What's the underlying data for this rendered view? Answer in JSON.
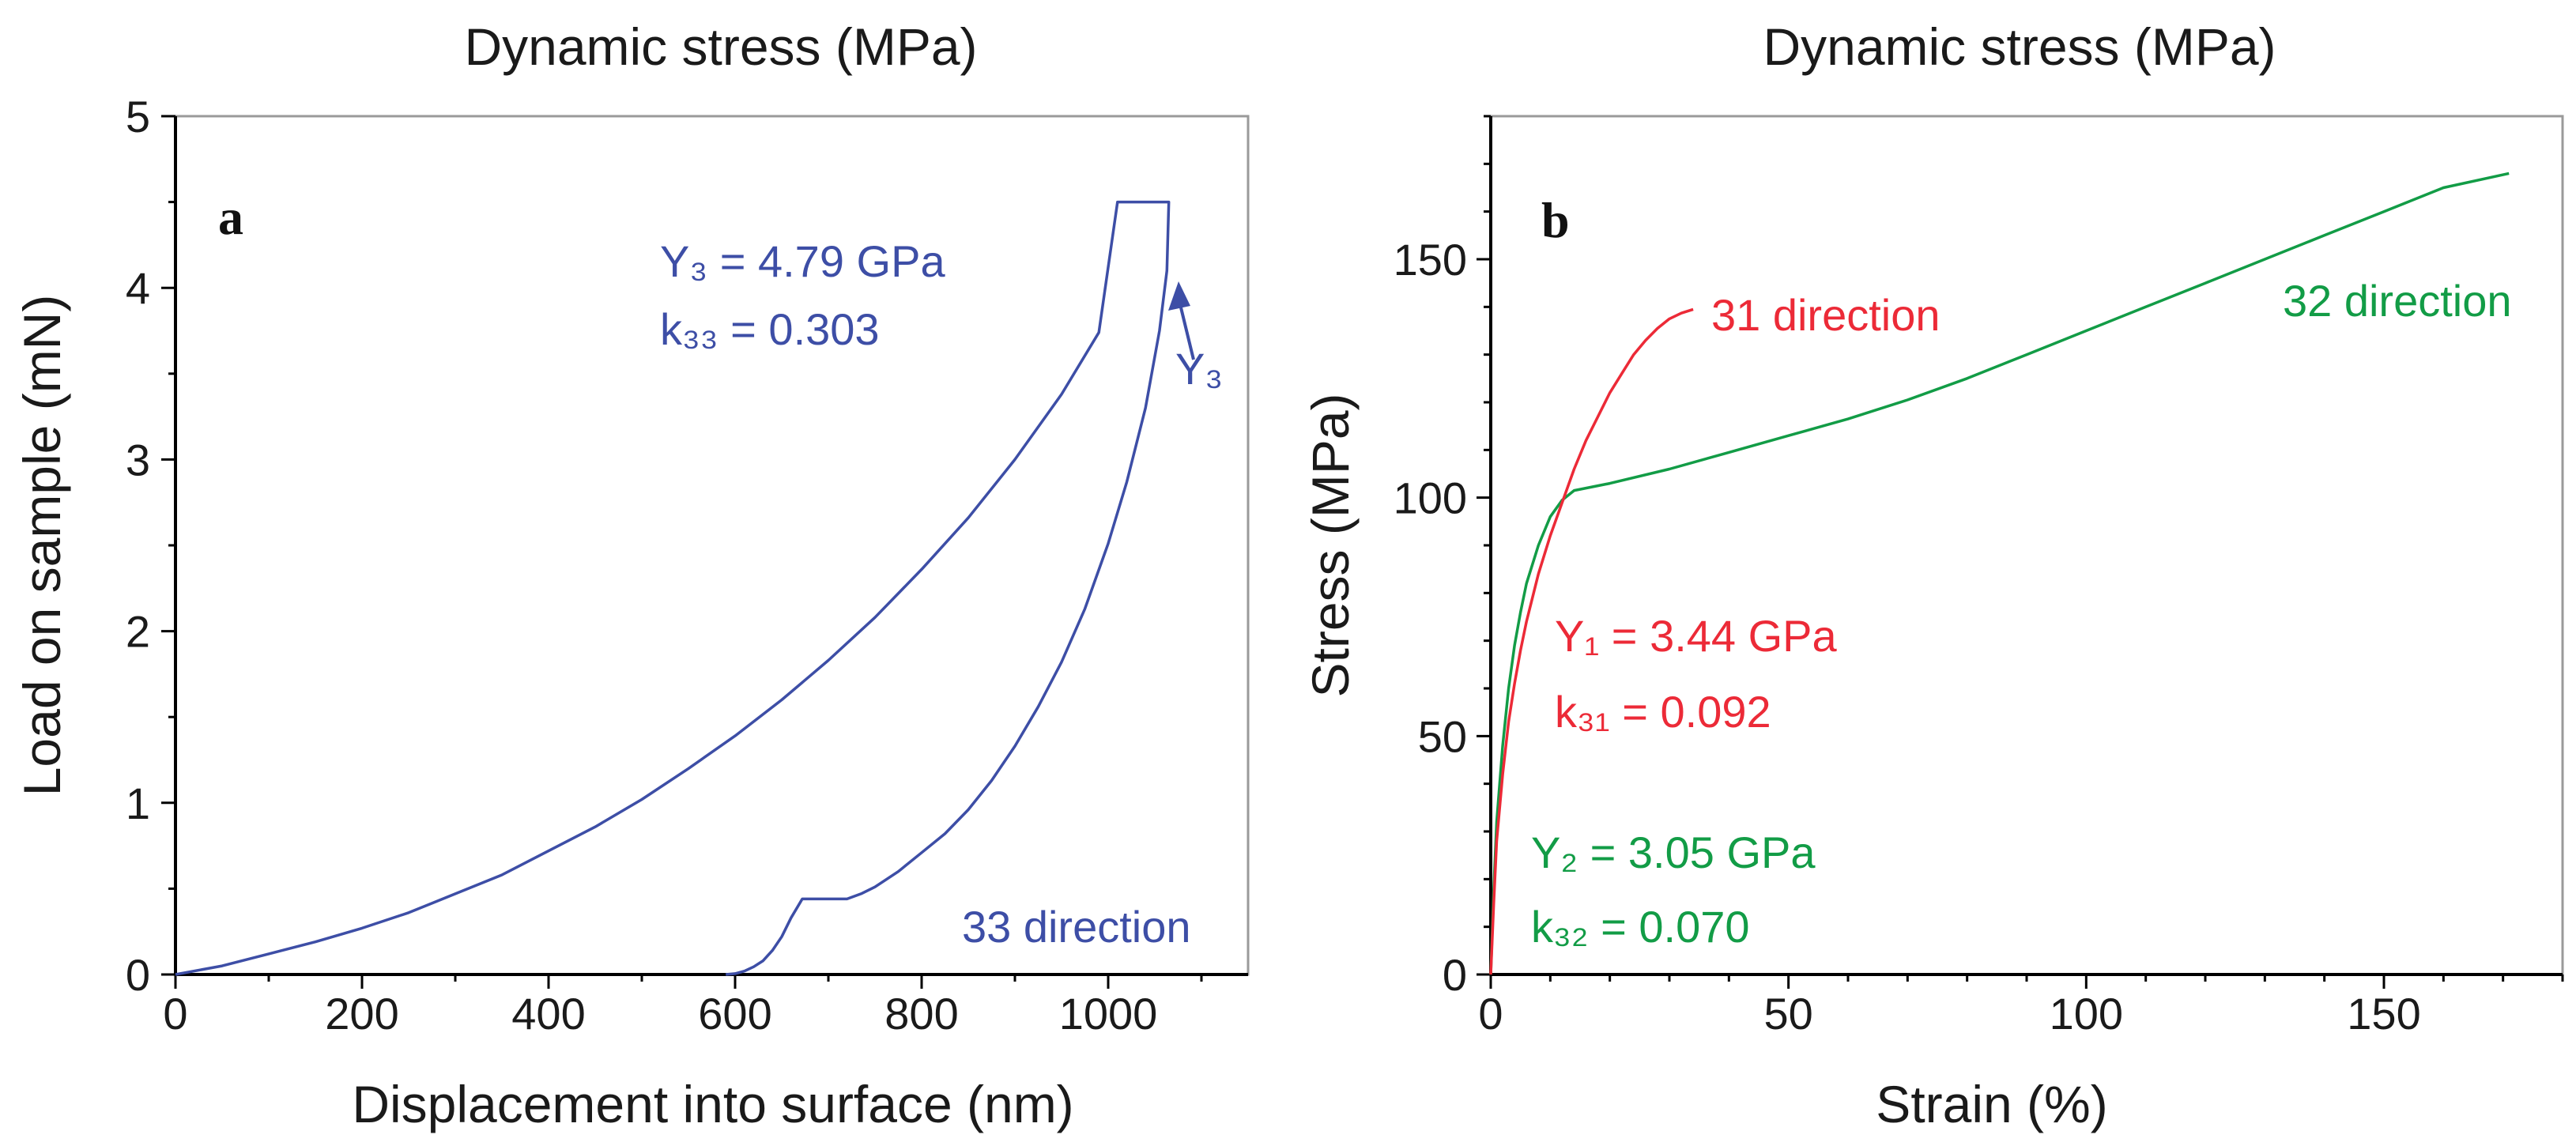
{
  "colors": {
    "blue": "#3d4ea6",
    "red": "#ec2a37",
    "green": "#129c46",
    "axis": "#000000",
    "frame": "#9a9a9a"
  },
  "chart_data": [
    {
      "type": "line",
      "panel_label": "a",
      "title": "Dynamic stress (MPa)",
      "xlabel": "Displacement into surface (nm)",
      "ylabel": "Load on sample (mN)",
      "xlim": [
        0,
        1150
      ],
      "ylim": [
        0,
        5
      ],
      "xticks": [
        0,
        200,
        400,
        600,
        800,
        1000
      ],
      "yticks": [
        0,
        1,
        2,
        3,
        4,
        5
      ],
      "x_tick_labels": [
        "0",
        "200",
        "400",
        "600",
        "800",
        "1000"
      ],
      "y_tick_labels": [
        "0",
        "1",
        "2",
        "3",
        "4",
        "5"
      ],
      "grid": false,
      "series": [
        {
          "name": "33 direction",
          "color": "#3d4ea6",
          "x": [
            0,
            50,
            100,
            150,
            200,
            250,
            300,
            350,
            400,
            450,
            500,
            550,
            600,
            650,
            700,
            750,
            800,
            850,
            900,
            950,
            990,
            1010,
            1065,
            1063,
            1055,
            1040,
            1020,
            1000,
            975,
            950,
            925,
            900,
            875,
            850,
            825,
            800,
            775,
            750,
            735,
            720,
            672,
            660,
            650,
            640,
            630,
            620,
            610,
            600,
            590
          ],
          "y": [
            0,
            0.05,
            0.12,
            0.19,
            0.27,
            0.36,
            0.47,
            0.58,
            0.72,
            0.86,
            1.02,
            1.2,
            1.39,
            1.6,
            1.83,
            2.08,
            2.36,
            2.66,
            3.0,
            3.38,
            3.74,
            4.5,
            4.5,
            4.1,
            3.75,
            3.3,
            2.87,
            2.51,
            2.13,
            1.82,
            1.56,
            1.33,
            1.13,
            0.96,
            0.82,
            0.71,
            0.6,
            0.51,
            0.47,
            0.44,
            0.44,
            0.33,
            0.22,
            0.14,
            0.08,
            0.045,
            0.02,
            0.005,
            0
          ]
        }
      ],
      "annotations": {
        "y3_line": "Y₃ = 4.79 GPa",
        "k33_line": "k₃₃ = 0.303",
        "y3_marker": "Y₃",
        "direction_label": "33 direction"
      }
    },
    {
      "type": "line",
      "panel_label": "b",
      "title": "Dynamic stress (MPa)",
      "xlabel": "Strain (%)",
      "ylabel": "Stress (MPa)",
      "xlim": [
        0,
        180
      ],
      "ylim": [
        0,
        180
      ],
      "xticks": [
        0,
        50,
        100,
        150
      ],
      "yticks": [
        0,
        50,
        100,
        150
      ],
      "x_tick_labels": [
        "0",
        "50",
        "100",
        "150"
      ],
      "y_tick_labels": [
        "0",
        "50",
        "100",
        "150"
      ],
      "grid": false,
      "series": [
        {
          "name": "31 direction",
          "color": "#ec2a37",
          "x": [
            0,
            0.5,
            1,
            2,
            3,
            4,
            5,
            6,
            8,
            10,
            12,
            14,
            16,
            18,
            20,
            22,
            24,
            26,
            28,
            30,
            32,
            34
          ],
          "y": [
            0,
            15,
            28,
            42,
            53,
            61,
            68,
            74,
            84,
            92,
            99,
            106,
            112,
            117,
            122,
            126,
            130,
            133,
            135.5,
            137.5,
            138.7,
            139.5
          ]
        },
        {
          "name": "32 direction",
          "color": "#129c46",
          "x": [
            0,
            0.5,
            1,
            2,
            3,
            4,
            5,
            6,
            8,
            10,
            12,
            14,
            20,
            30,
            40,
            50,
            60,
            70,
            80,
            90,
            100,
            110,
            120,
            130,
            140,
            150,
            160,
            171
          ],
          "y": [
            0,
            18,
            32,
            48,
            60,
            69,
            76,
            82,
            90,
            96,
            99.5,
            101.5,
            103,
            106,
            109.5,
            113,
            116.5,
            120.5,
            125,
            130,
            135,
            140,
            145,
            150,
            155,
            160,
            165,
            168
          ]
        }
      ],
      "annotations": {
        "y1_line": "Y₁ = 3.44 GPa",
        "k31_line": "k₃₁ = 0.092",
        "y2_line": "Y₂ = 3.05 GPa",
        "k32_line": "k₃₂ = 0.070",
        "direction_31": "31 direction",
        "direction_32": "32 direction"
      }
    }
  ]
}
